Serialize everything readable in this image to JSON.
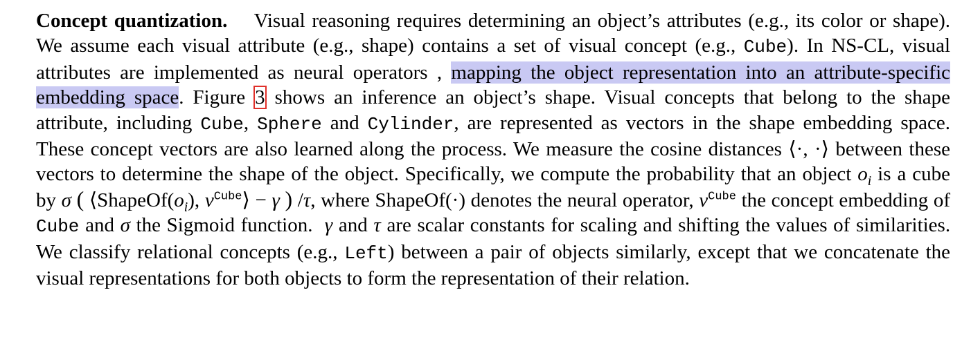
{
  "paragraph": {
    "heading": "Concept quantization.",
    "s1": "Visual reasoning requires determining an object’s attributes (e.g., its color or shape). We assume each visual attribute (e.g., shape) contains a set of visual concept (e.g.,",
    "cube_1": "Cube",
    "s2": "). In NS-CL, visual attributes are implemented as neural operators ,",
    "highlight": "mapping the object representation into an attribute-specific embedding space",
    "s3": ". Figure",
    "figure_ref": "3",
    "s4": "shows an inference an object’s shape. Visual concepts that belong to the shape attribute, including",
    "cube_2": "Cube",
    "comma_1": ",",
    "sphere": "Sphere",
    "and_1": "and",
    "cylinder": "Cylinder",
    "s5": ", are represented as vectors in the shape embedding space. These concept vectors are also learned along the process. We measure the cosine distances",
    "cosine": "⟨·, ·⟩",
    "s6": "between these vectors to determine the shape of the object. Specifically, we compute the probability that an object",
    "o_var": "o",
    "o_sub": "i",
    "s7": "is a cube by",
    "formula": {
      "sigma": "σ",
      "open": "(",
      "langle": "⟨",
      "shapeof": "ShapeOf(",
      "o": "o",
      "o_sub": "i",
      "mid": "),",
      "v": "v",
      "v_sup": "Cube",
      "rangle": "⟩",
      "minus": "−",
      "gamma": "γ",
      "close": ")",
      "slash": "/",
      "tau": "τ"
    },
    "s8": ", where ShapeOf(·) denotes the neural operator,",
    "v2": "v",
    "v2_sup": "Cube",
    "s9": "the concept embedding of",
    "cube_3": "Cube",
    "s10": "and",
    "sigma2": "σ",
    "s11": "the Sigmoid function.",
    "gamma2": "γ",
    "s12": "and",
    "tau2": "τ",
    "s13": "are scalar constants for scaling and shifting the values of similarities. We classify relational concepts (e.g.,",
    "left": "Left",
    "s14": ") between a pair of objects similarly, except that we concatenate the visual representations for both objects to form the representation of their relation."
  }
}
